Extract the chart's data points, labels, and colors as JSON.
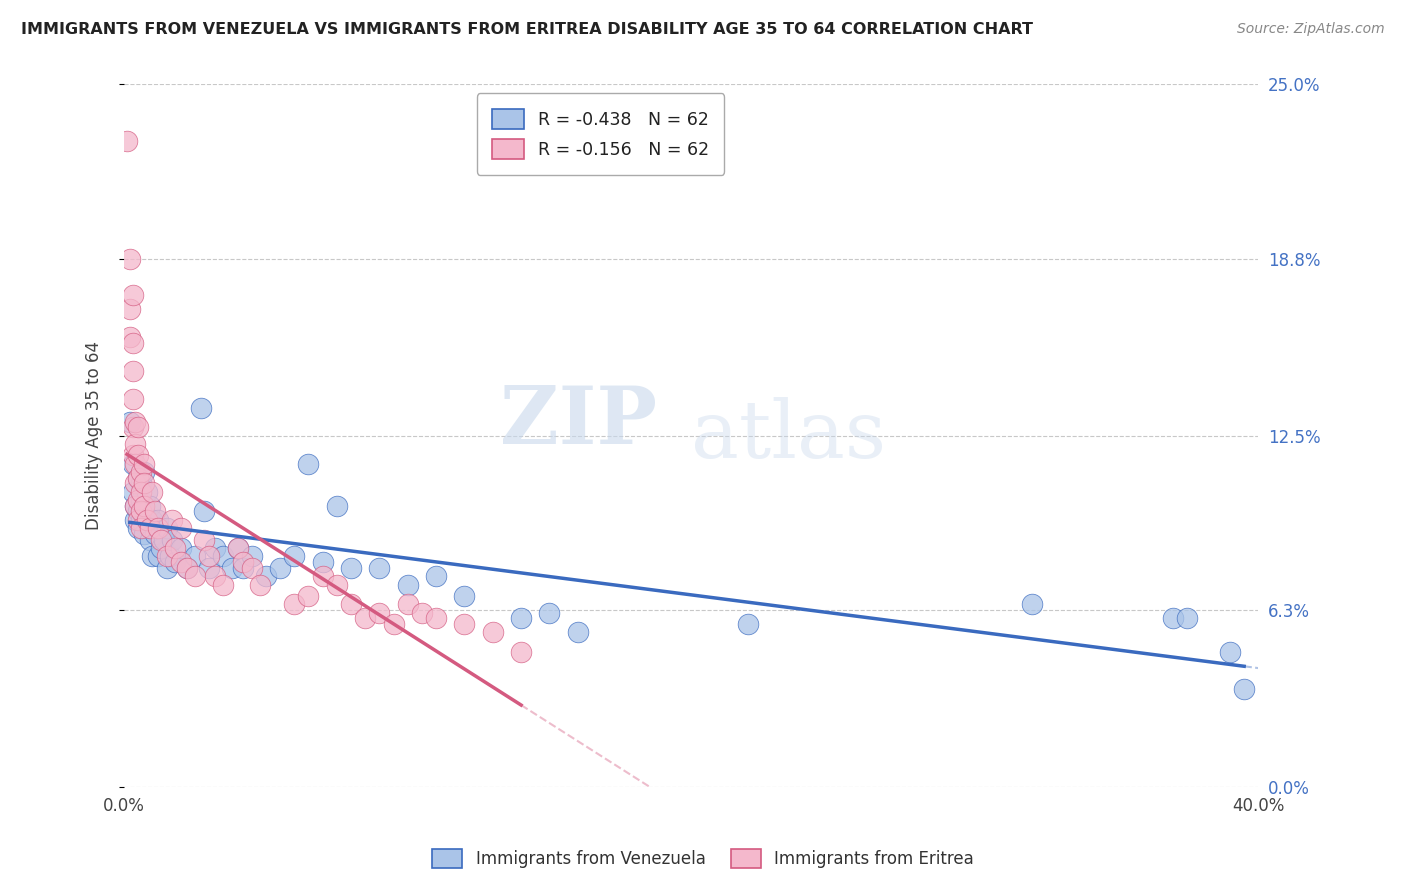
{
  "title": "IMMIGRANTS FROM VENEZUELA VS IMMIGRANTS FROM ERITREA DISABILITY AGE 35 TO 64 CORRELATION CHART",
  "source": "Source: ZipAtlas.com",
  "ylabel": "Disability Age 35 to 64",
  "xlim": [
    0.0,
    0.4
  ],
  "ylim": [
    -0.01,
    0.27
  ],
  "plot_ylim": [
    0.0,
    0.25
  ],
  "yticks": [
    0.0,
    0.063,
    0.125,
    0.188,
    0.25
  ],
  "ytick_labels": [
    "0.0%",
    "6.3%",
    "12.5%",
    "18.8%",
    "25.0%"
  ],
  "xticks": [
    0.0,
    0.1,
    0.2,
    0.3,
    0.4
  ],
  "xtick_labels": [
    "0.0%",
    "",
    "",
    "",
    "40.0%"
  ],
  "legend_entries": [
    {
      "label": "R = -0.438   N = 62",
      "color": "#aac4e8"
    },
    {
      "label": "R = -0.156   N = 62",
      "color": "#f4b8cc"
    }
  ],
  "watermark": "ZIPatlas",
  "venezuela_color": "#aac4e8",
  "eritrea_color": "#f4b8cc",
  "venezuela_line_color": "#3a6abf",
  "eritrea_line_color": "#d45a80",
  "background_color": "#ffffff",
  "grid_color": "#c8c8c8",
  "venezuela_scatter": [
    [
      0.002,
      0.13
    ],
    [
      0.003,
      0.115
    ],
    [
      0.003,
      0.105
    ],
    [
      0.004,
      0.1
    ],
    [
      0.004,
      0.095
    ],
    [
      0.005,
      0.11
    ],
    [
      0.005,
      0.098
    ],
    [
      0.005,
      0.092
    ],
    [
      0.006,
      0.108
    ],
    [
      0.006,
      0.102
    ],
    [
      0.006,
      0.095
    ],
    [
      0.007,
      0.112
    ],
    [
      0.007,
      0.098
    ],
    [
      0.007,
      0.09
    ],
    [
      0.008,
      0.105
    ],
    [
      0.008,
      0.095
    ],
    [
      0.009,
      0.1
    ],
    [
      0.009,
      0.088
    ],
    [
      0.01,
      0.095
    ],
    [
      0.01,
      0.082
    ],
    [
      0.011,
      0.09
    ],
    [
      0.012,
      0.095
    ],
    [
      0.012,
      0.082
    ],
    [
      0.013,
      0.085
    ],
    [
      0.014,
      0.088
    ],
    [
      0.015,
      0.092
    ],
    [
      0.015,
      0.078
    ],
    [
      0.016,
      0.082
    ],
    [
      0.017,
      0.088
    ],
    [
      0.018,
      0.08
    ],
    [
      0.02,
      0.085
    ],
    [
      0.022,
      0.078
    ],
    [
      0.025,
      0.082
    ],
    [
      0.027,
      0.135
    ],
    [
      0.028,
      0.098
    ],
    [
      0.03,
      0.078
    ],
    [
      0.032,
      0.085
    ],
    [
      0.035,
      0.082
    ],
    [
      0.038,
      0.078
    ],
    [
      0.04,
      0.085
    ],
    [
      0.042,
      0.078
    ],
    [
      0.045,
      0.082
    ],
    [
      0.05,
      0.075
    ],
    [
      0.055,
      0.078
    ],
    [
      0.06,
      0.082
    ],
    [
      0.065,
      0.115
    ],
    [
      0.07,
      0.08
    ],
    [
      0.075,
      0.1
    ],
    [
      0.08,
      0.078
    ],
    [
      0.09,
      0.078
    ],
    [
      0.1,
      0.072
    ],
    [
      0.11,
      0.075
    ],
    [
      0.12,
      0.068
    ],
    [
      0.14,
      0.06
    ],
    [
      0.15,
      0.062
    ],
    [
      0.16,
      0.055
    ],
    [
      0.22,
      0.058
    ],
    [
      0.32,
      0.065
    ],
    [
      0.37,
      0.06
    ],
    [
      0.375,
      0.06
    ],
    [
      0.39,
      0.048
    ],
    [
      0.395,
      0.035
    ]
  ],
  "eritrea_scatter": [
    [
      0.001,
      0.23
    ],
    [
      0.002,
      0.188
    ],
    [
      0.002,
      0.17
    ],
    [
      0.002,
      0.16
    ],
    [
      0.003,
      0.175
    ],
    [
      0.003,
      0.158
    ],
    [
      0.003,
      0.148
    ],
    [
      0.003,
      0.138
    ],
    [
      0.003,
      0.128
    ],
    [
      0.003,
      0.118
    ],
    [
      0.004,
      0.13
    ],
    [
      0.004,
      0.122
    ],
    [
      0.004,
      0.115
    ],
    [
      0.004,
      0.108
    ],
    [
      0.004,
      0.1
    ],
    [
      0.005,
      0.128
    ],
    [
      0.005,
      0.118
    ],
    [
      0.005,
      0.11
    ],
    [
      0.005,
      0.102
    ],
    [
      0.005,
      0.095
    ],
    [
      0.006,
      0.112
    ],
    [
      0.006,
      0.105
    ],
    [
      0.006,
      0.098
    ],
    [
      0.006,
      0.092
    ],
    [
      0.007,
      0.115
    ],
    [
      0.007,
      0.108
    ],
    [
      0.007,
      0.1
    ],
    [
      0.008,
      0.095
    ],
    [
      0.009,
      0.092
    ],
    [
      0.01,
      0.105
    ],
    [
      0.011,
      0.098
    ],
    [
      0.012,
      0.092
    ],
    [
      0.013,
      0.088
    ],
    [
      0.015,
      0.082
    ],
    [
      0.017,
      0.095
    ],
    [
      0.018,
      0.085
    ],
    [
      0.02,
      0.092
    ],
    [
      0.02,
      0.08
    ],
    [
      0.022,
      0.078
    ],
    [
      0.025,
      0.075
    ],
    [
      0.028,
      0.088
    ],
    [
      0.03,
      0.082
    ],
    [
      0.032,
      0.075
    ],
    [
      0.035,
      0.072
    ],
    [
      0.04,
      0.085
    ],
    [
      0.042,
      0.08
    ],
    [
      0.045,
      0.078
    ],
    [
      0.048,
      0.072
    ],
    [
      0.06,
      0.065
    ],
    [
      0.065,
      0.068
    ],
    [
      0.07,
      0.075
    ],
    [
      0.075,
      0.072
    ],
    [
      0.08,
      0.065
    ],
    [
      0.085,
      0.06
    ],
    [
      0.09,
      0.062
    ],
    [
      0.095,
      0.058
    ],
    [
      0.1,
      0.065
    ],
    [
      0.105,
      0.062
    ],
    [
      0.11,
      0.06
    ],
    [
      0.12,
      0.058
    ],
    [
      0.13,
      0.055
    ],
    [
      0.14,
      0.048
    ]
  ]
}
